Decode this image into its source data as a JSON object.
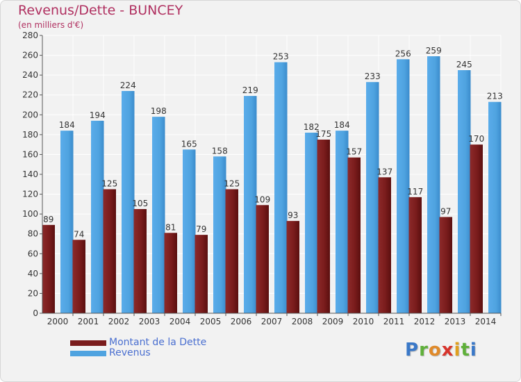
{
  "title": "Revenus/Dette - BUNCEY",
  "subtitle": "(en milliers d'€)",
  "legend": {
    "debt_label": "Montant de la Dette",
    "revenue_label": "Revenus"
  },
  "logo": {
    "text": "Proxiti"
  },
  "colors": {
    "debt": "#7a1c1c",
    "revenue": "#4fa3e0",
    "title": "#b03060",
    "legend_text": "#4a6fd0"
  },
  "chart_data": {
    "type": "bar",
    "categories": [
      "2000",
      "2001",
      "2002",
      "2003",
      "2004",
      "2005",
      "2006",
      "2007",
      "2008",
      "2009",
      "2010",
      "2011",
      "2012",
      "2013",
      "2014"
    ],
    "series": [
      {
        "name": "Montant de la Dette",
        "values": [
          89,
          74,
          125,
          105,
          81,
          79,
          125,
          109,
          93,
          175,
          157,
          137,
          117,
          97,
          170
        ]
      },
      {
        "name": "Revenus",
        "values": [
          184,
          194,
          224,
          198,
          165,
          158,
          219,
          253,
          182,
          184,
          233,
          256,
          259,
          245,
          213
        ]
      }
    ],
    "ylim": [
      0,
      280
    ],
    "yticks": [
      0,
      20,
      40,
      60,
      80,
      100,
      120,
      140,
      160,
      180,
      200,
      220,
      240,
      260,
      280
    ],
    "grid": true,
    "legend_position": "bottom-left"
  }
}
